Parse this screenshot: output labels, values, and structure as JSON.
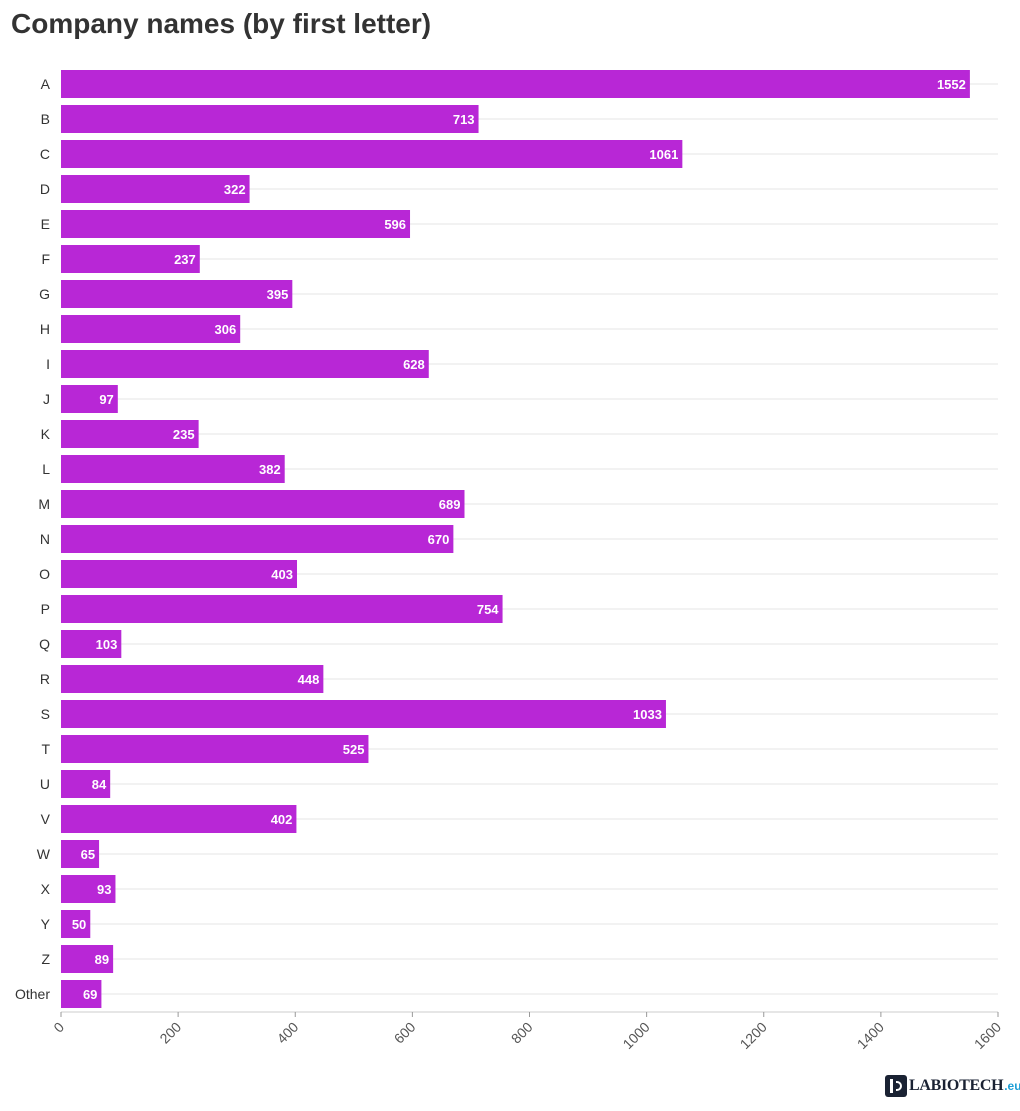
{
  "chart_data": {
    "type": "bar",
    "orientation": "horizontal",
    "title": "Company names (by first letter)",
    "xlabel": "",
    "ylabel": "",
    "categories": [
      "A",
      "B",
      "C",
      "D",
      "E",
      "F",
      "G",
      "H",
      "I",
      "J",
      "K",
      "L",
      "M",
      "N",
      "O",
      "P",
      "Q",
      "R",
      "S",
      "T",
      "U",
      "V",
      "W",
      "X",
      "Y",
      "Z",
      "Other"
    ],
    "values": [
      1552,
      713,
      1061,
      322,
      596,
      237,
      395,
      306,
      628,
      97,
      235,
      382,
      689,
      670,
      403,
      754,
      103,
      448,
      1033,
      525,
      84,
      402,
      65,
      93,
      50,
      89,
      69
    ],
    "xlim": [
      0,
      1600
    ],
    "xticks": [
      0,
      200,
      400,
      600,
      800,
      1000,
      1200,
      1400,
      1600
    ],
    "grid": true,
    "data_labels": true,
    "bar_color": "#b827d6"
  },
  "logo": {
    "name": "LABIOTECH",
    "tld": ".eu"
  }
}
